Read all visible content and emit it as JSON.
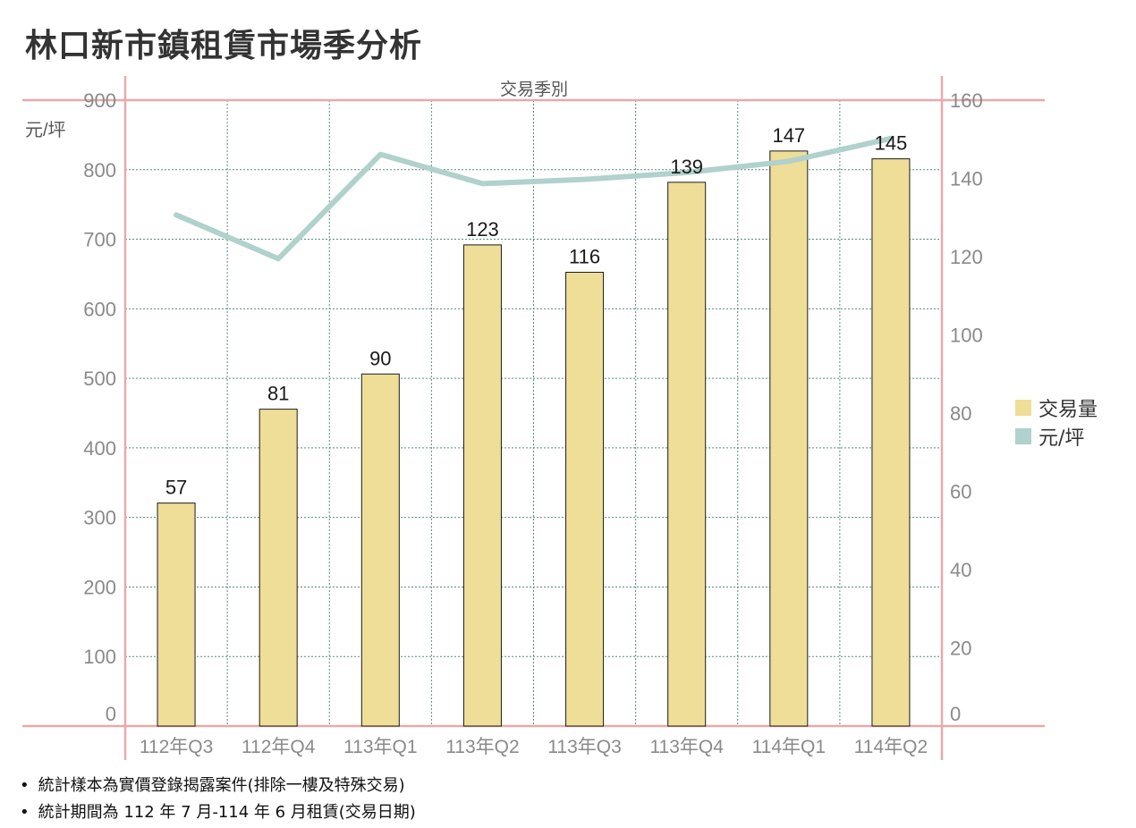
{
  "title": "林口新市鎮租賃市場季分析",
  "chart_data": {
    "type": "bar",
    "title": "林口新市鎮租賃市場季分析",
    "xlabel": "交易季別",
    "ylabel": "元/坪",
    "categories": [
      "112年Q3",
      "112年Q4",
      "113年Q1",
      "113年Q2",
      "113年Q3",
      "113年Q4",
      "114年Q1",
      "114年Q2"
    ],
    "series": [
      {
        "name": "交易量",
        "type": "bar",
        "axis": "right",
        "values": [
          57,
          81,
          90,
          123,
          116,
          139,
          147,
          145
        ]
      },
      {
        "name": "元/坪",
        "type": "line",
        "axis": "left",
        "values": [
          735,
          672,
          822,
          780,
          786,
          796,
          812,
          845
        ]
      }
    ],
    "left_axis": {
      "label": "元/坪",
      "ylim": [
        0,
        900
      ],
      "ticks": [
        0,
        100,
        200,
        300,
        400,
        500,
        600,
        700,
        800,
        900
      ]
    },
    "right_axis": {
      "ylim": [
        0,
        160
      ],
      "ticks": [
        0,
        20,
        40,
        60,
        80,
        100,
        120,
        140,
        160
      ]
    },
    "grid": true,
    "legend": "right"
  },
  "colors": {
    "bar": "#efde98",
    "line": "#b0d1cc",
    "axis": "#e8a9a9",
    "grid": "#5b8a84",
    "tick_text": "#8a8a8a"
  },
  "notes": [
    "統計樣本為實價登錄揭露案件(排除一樓及特殊交易)",
    "統計期間為 112 年 7 月-114 年 6 月租賃(交易日期)"
  ]
}
